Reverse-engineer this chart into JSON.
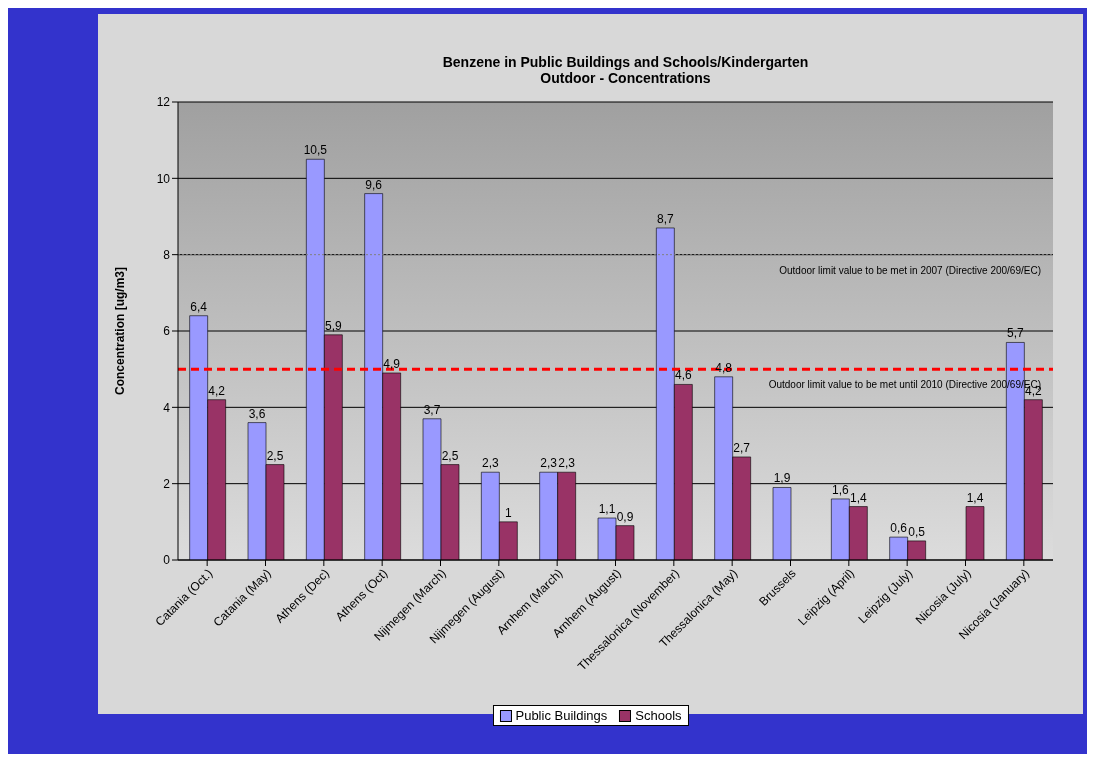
{
  "chart_data": {
    "type": "bar",
    "title": "Benzene in Public Buildings and Schools/Kindergarten",
    "subtitle": "Outdoor - Concentrations",
    "ylabel": "Concentration [ug/m3]",
    "categories": [
      "Catania (Oct.)",
      "Catania (May)",
      "Athens (Dec)",
      "Athens (Oct)",
      "Nijmegen (March)",
      "Nijmegen (August)",
      "Arnhem (March)",
      "Arnhem (August)",
      "Thessalonica (November)",
      "Thessalonica (May)",
      "Brussels",
      "Leipzig (April)",
      "Leipzig (July)",
      "Nicosia (July)",
      "Nicosia (January)"
    ],
    "series": [
      {
        "name": "Public Buildings",
        "color": "#9999ff",
        "values": [
          6.4,
          3.6,
          10.5,
          9.6,
          3.7,
          2.3,
          2.3,
          1.1,
          8.7,
          4.8,
          1.9,
          1.6,
          0.6,
          null,
          5.7
        ],
        "value_labels": [
          "6,4",
          "3,6",
          "10,5",
          "9,6",
          "3,7",
          "2,3",
          "2,3",
          "1,1",
          "8,7",
          "4,8",
          "1,9",
          "1,6",
          "0,6",
          null,
          "5,7"
        ]
      },
      {
        "name": "Schools",
        "color": "#993366",
        "values": [
          4.2,
          2.5,
          5.9,
          4.9,
          2.5,
          1,
          2.3,
          0.9,
          4.6,
          2.7,
          null,
          1.4,
          0.5,
          1.4,
          4.2
        ],
        "value_labels": [
          "4,2",
          "2,5",
          "5,9",
          "4,9",
          "2,5",
          "1",
          "2,3",
          "0,9",
          "4,6",
          "2,7",
          null,
          "1,4",
          "0,5",
          "1,4",
          "4,2"
        ]
      }
    ],
    "ylim": [
      0,
      12
    ],
    "yticks": [
      0,
      2,
      4,
      6,
      8,
      10,
      12
    ],
    "grid": "y",
    "legend": "bottom",
    "ref_lines": [
      {
        "axis": "y",
        "value": 8,
        "label": "Outdoor limit value to be met in 2007 (Directive 200/69/EC)",
        "color": "#808080",
        "line_style": "dotted"
      },
      {
        "axis": "y",
        "value": 5,
        "label": "Outdoor limit value to be met until 2010 (Directive 200/69/EC)",
        "color": "#ff0000",
        "line_style": "dashed"
      }
    ]
  }
}
